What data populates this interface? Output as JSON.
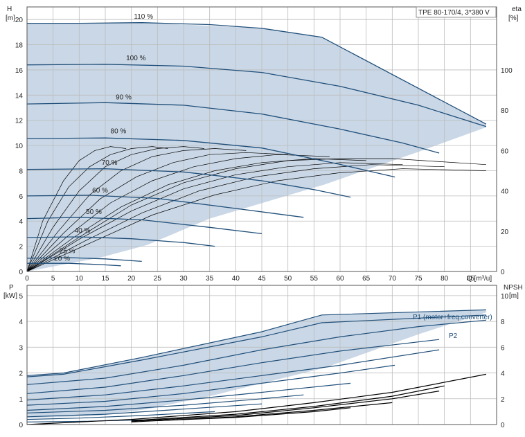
{
  "title_box": "TPE 80-170/4, 3*380 V",
  "chart_data": [
    {
      "type": "line",
      "name": "head",
      "ylabel": "H",
      "yunit": "[m]",
      "y2label": "eta",
      "y2unit": "[%]",
      "xlabel": "Q [m³/u]",
      "xlim": [
        0,
        90
      ],
      "ylim": [
        0,
        21
      ],
      "xticks": [
        0,
        5,
        10,
        15,
        20,
        25,
        30,
        35,
        40,
        45,
        50,
        55,
        60,
        65,
        70,
        75,
        80,
        85
      ],
      "yticks": [
        0,
        2,
        4,
        6,
        8,
        10,
        12,
        14,
        16,
        18,
        20
      ],
      "y2ticks": [
        0,
        20,
        40,
        60,
        80,
        100
      ],
      "y2lim": [
        0,
        131.25
      ],
      "grid": true,
      "envelope": [
        [
          0,
          19.7
        ],
        [
          7,
          19.7
        ],
        [
          22,
          19.75
        ],
        [
          45,
          19.3
        ],
        [
          56.5,
          18.6
        ],
        [
          88,
          11.7
        ],
        [
          88,
          11.45
        ],
        [
          75,
          9.5
        ],
        [
          57,
          6.9
        ],
        [
          35,
          4.2
        ],
        [
          23,
          2.1
        ],
        [
          14,
          1.1
        ],
        [
          0,
          0
        ]
      ],
      "speed_curves": [
        {
          "label": "110 %",
          "points": [
            [
              0,
              19.7
            ],
            [
              10,
              19.7
            ],
            [
              22,
              19.75
            ],
            [
              35,
              19.6
            ],
            [
              45,
              19.3
            ],
            [
              56.5,
              18.6
            ],
            [
              88,
              11.7
            ]
          ]
        },
        {
          "label": "100 %",
          "points": [
            [
              0,
              16.4
            ],
            [
              15,
              16.45
            ],
            [
              30,
              16.3
            ],
            [
              45,
              15.8
            ],
            [
              60,
              14.7
            ],
            [
              75,
              13.2
            ],
            [
              88,
              11.5
            ]
          ]
        },
        {
          "label": "90 %",
          "points": [
            [
              0,
              13.3
            ],
            [
              15,
              13.4
            ],
            [
              30,
              13.2
            ],
            [
              45,
              12.5
            ],
            [
              60,
              11.3
            ],
            [
              72,
              10.2
            ],
            [
              79,
              9.4
            ]
          ]
        },
        {
          "label": "80 %",
          "points": [
            [
              0,
              10.55
            ],
            [
              15,
              10.6
            ],
            [
              30,
              10.4
            ],
            [
              45,
              9.8
            ],
            [
              60,
              8.5
            ],
            [
              70.5,
              7.5
            ]
          ]
        },
        {
          "label": "70 %",
          "points": [
            [
              0,
              8.1
            ],
            [
              15,
              8.15
            ],
            [
              30,
              7.9
            ],
            [
              45,
              7.2
            ],
            [
              55,
              6.5
            ],
            [
              62,
              5.9
            ]
          ]
        },
        {
          "label": "60 %",
          "points": [
            [
              0,
              6.0
            ],
            [
              12,
              6.05
            ],
            [
              25,
              5.8
            ],
            [
              40,
              5.0
            ],
            [
              53,
              4.3
            ]
          ]
        },
        {
          "label": "50 %",
          "points": [
            [
              0,
              4.2
            ],
            [
              10,
              4.3
            ],
            [
              22,
              4.1
            ],
            [
              35,
              3.5
            ],
            [
              45,
              3.0
            ]
          ]
        },
        {
          "label": "40 %",
          "points": [
            [
              0,
              2.7
            ],
            [
              10,
              2.75
            ],
            [
              20,
              2.6
            ],
            [
              30,
              2.3
            ],
            [
              36,
              2.0
            ]
          ]
        },
        {
          "label": "25 %",
          "points": [
            [
              0,
              1.05
            ],
            [
              8,
              1.1
            ],
            [
              15,
              1.0
            ],
            [
              22,
              0.8
            ]
          ]
        },
        {
          "label": "20 %",
          "points": [
            [
              0,
              0.65
            ],
            [
              8,
              0.65
            ],
            [
              14,
              0.55
            ],
            [
              18,
              0.45
            ]
          ]
        }
      ],
      "eta_curves": [
        [
          [
            0,
            0
          ],
          [
            3,
            25
          ],
          [
            7,
            45
          ],
          [
            10,
            55
          ],
          [
            13,
            60
          ],
          [
            16,
            62
          ],
          [
            19,
            61
          ]
        ],
        [
          [
            0,
            0
          ],
          [
            4,
            25
          ],
          [
            8,
            42
          ],
          [
            12,
            52
          ],
          [
            16,
            58
          ],
          [
            20,
            61
          ],
          [
            24,
            62
          ],
          [
            27,
            61
          ]
        ],
        [
          [
            0,
            0
          ],
          [
            5,
            22
          ],
          [
            10,
            40
          ],
          [
            15,
            52
          ],
          [
            20,
            58
          ],
          [
            25,
            61
          ],
          [
            30,
            62
          ],
          [
            34,
            61
          ]
        ],
        [
          [
            0,
            0
          ],
          [
            6,
            20
          ],
          [
            12,
            38
          ],
          [
            18,
            50
          ],
          [
            24,
            57
          ],
          [
            30,
            60
          ],
          [
            36,
            61
          ],
          [
            42,
            60
          ]
        ],
        [
          [
            0,
            0
          ],
          [
            7,
            19
          ],
          [
            14,
            36
          ],
          [
            21,
            47
          ],
          [
            28,
            54
          ],
          [
            35,
            58
          ],
          [
            42,
            59
          ],
          [
            50,
            58
          ]
        ],
        [
          [
            0,
            0
          ],
          [
            8,
            18
          ],
          [
            16,
            34
          ],
          [
            24,
            45
          ],
          [
            32,
            52
          ],
          [
            40,
            56
          ],
          [
            48,
            58
          ],
          [
            58,
            57
          ]
        ],
        [
          [
            0,
            0
          ],
          [
            9,
            17
          ],
          [
            18,
            32
          ],
          [
            27,
            43
          ],
          [
            36,
            50
          ],
          [
            45,
            54
          ],
          [
            55,
            56
          ],
          [
            65,
            55
          ]
        ],
        [
          [
            0,
            0
          ],
          [
            10,
            16
          ],
          [
            20,
            30
          ],
          [
            30,
            41
          ],
          [
            40,
            48
          ],
          [
            50,
            52
          ],
          [
            60,
            54
          ],
          [
            72,
            53
          ]
        ],
        [
          [
            0,
            0
          ],
          [
            11,
            15
          ],
          [
            22,
            29
          ],
          [
            33,
            40
          ],
          [
            44,
            47
          ],
          [
            55,
            51
          ],
          [
            66,
            53
          ],
          [
            80,
            52
          ]
        ],
        [
          [
            0,
            0
          ],
          [
            12,
            14
          ],
          [
            24,
            28
          ],
          [
            36,
            38
          ],
          [
            48,
            45
          ],
          [
            60,
            49
          ],
          [
            72,
            51
          ],
          [
            88,
            50
          ]
        ],
        [
          [
            0,
            0
          ],
          [
            10,
            17
          ],
          [
            20,
            33
          ],
          [
            30,
            44
          ],
          [
            40,
            51
          ],
          [
            50,
            55
          ],
          [
            60,
            56
          ],
          [
            70,
            56
          ],
          [
            88,
            53
          ]
        ]
      ],
      "speed_label_positions": {
        "110 %": [
          20.5,
          22.0
        ],
        "100 %": [
          19.0,
          22.0
        ],
        "90 %": [
          17.0,
          18.0
        ],
        "80 %": [
          16.0,
          13.0
        ],
        "70 %": [
          8.0,
          13.5
        ]
      }
    },
    {
      "type": "line",
      "name": "power",
      "ylabel": "P",
      "yunit": "[kW]",
      "y2label": "NPSH",
      "y2unit": "[m]",
      "xlim": [
        0,
        90
      ],
      "ylim": [
        0,
        5.4
      ],
      "yticks": [
        0,
        1,
        2,
        3,
        4,
        5
      ],
      "y2ticks": [
        0,
        2,
        4,
        6,
        8,
        10
      ],
      "y2lim": [
        0,
        10.8
      ],
      "grid": true,
      "series_labels": [
        "P1 (motor+freq.converter)",
        "P2"
      ],
      "envelope": [
        [
          0,
          1.9
        ],
        [
          7,
          2.0
        ],
        [
          22,
          2.6
        ],
        [
          45,
          3.6
        ],
        [
          56.5,
          4.25
        ],
        [
          88,
          4.45
        ],
        [
          88,
          4.35
        ],
        [
          75,
          3.5
        ],
        [
          57,
          2.2
        ],
        [
          35,
          1.1
        ],
        [
          23,
          0.6
        ],
        [
          14,
          0.35
        ],
        [
          0,
          0.25
        ]
      ],
      "power_curves": [
        [
          [
            0,
            1.9
          ],
          [
            7,
            2.0
          ],
          [
            22,
            2.6
          ],
          [
            45,
            3.6
          ],
          [
            56.5,
            4.25
          ],
          [
            88,
            4.45
          ]
        ],
        [
          [
            0,
            1.85
          ],
          [
            7,
            1.95
          ],
          [
            22,
            2.5
          ],
          [
            45,
            3.4
          ],
          [
            56.5,
            3.95
          ],
          [
            88,
            4.25
          ]
        ],
        [
          [
            0,
            1.55
          ],
          [
            15,
            1.8
          ],
          [
            30,
            2.3
          ],
          [
            45,
            2.9
          ],
          [
            60,
            3.4
          ],
          [
            75,
            3.8
          ],
          [
            88,
            4.05
          ]
        ],
        [
          [
            0,
            1.2
          ],
          [
            15,
            1.45
          ],
          [
            30,
            1.9
          ],
          [
            45,
            2.4
          ],
          [
            60,
            2.85
          ],
          [
            79,
            3.3
          ]
        ],
        [
          [
            0,
            0.95
          ],
          [
            15,
            1.15
          ],
          [
            30,
            1.5
          ],
          [
            45,
            1.9
          ],
          [
            60,
            2.3
          ],
          [
            79,
            2.9
          ]
        ],
        [
          [
            0,
            0.75
          ],
          [
            15,
            0.9
          ],
          [
            30,
            1.2
          ],
          [
            45,
            1.6
          ],
          [
            60,
            2.0
          ],
          [
            70.5,
            2.3
          ]
        ],
        [
          [
            0,
            0.55
          ],
          [
            15,
            0.7
          ],
          [
            30,
            0.95
          ],
          [
            45,
            1.25
          ],
          [
            62,
            1.6
          ]
        ],
        [
          [
            0,
            0.45
          ],
          [
            15,
            0.55
          ],
          [
            30,
            0.75
          ],
          [
            45,
            1.0
          ],
          [
            53,
            1.15
          ]
        ],
        [
          [
            0,
            0.3
          ],
          [
            15,
            0.4
          ],
          [
            30,
            0.6
          ],
          [
            45,
            0.8
          ]
        ],
        [
          [
            0,
            0.2
          ],
          [
            10,
            0.25
          ],
          [
            22,
            0.35
          ],
          [
            36,
            0.5
          ]
        ],
        [
          [
            0,
            0.1
          ],
          [
            10,
            0.12
          ],
          [
            22,
            0.18
          ]
        ]
      ],
      "npsh_curves": [
        [
          [
            0,
            0
          ],
          [
            20,
            0.4
          ],
          [
            40,
            1.0
          ],
          [
            55,
            1.7
          ],
          [
            70,
            2.5
          ],
          [
            88,
            3.9
          ]
        ],
        [
          [
            20,
            0.3
          ],
          [
            40,
            0.8
          ],
          [
            55,
            1.4
          ],
          [
            70,
            2.2
          ],
          [
            80,
            3.0
          ]
        ],
        [
          [
            20,
            0.25
          ],
          [
            40,
            0.7
          ],
          [
            55,
            1.3
          ],
          [
            70,
            2.0
          ],
          [
            79,
            2.6
          ]
        ],
        [
          [
            20,
            0.2
          ],
          [
            40,
            0.6
          ],
          [
            55,
            1.1
          ],
          [
            70,
            1.7
          ]
        ],
        [
          [
            25,
            0.3
          ],
          [
            40,
            0.55
          ],
          [
            55,
            1.0
          ],
          [
            62,
            1.3
          ]
        ]
      ]
    }
  ]
}
